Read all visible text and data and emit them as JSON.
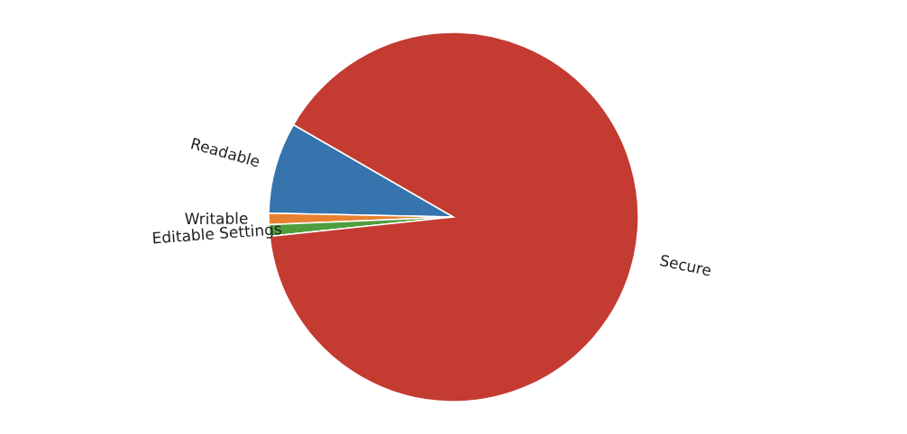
{
  "chart_data": {
    "type": "pie",
    "categories": [
      "Readable",
      "Writable",
      "Editable Settings",
      "Secure"
    ],
    "values": [
      8,
      1,
      1,
      90
    ],
    "colors": [
      "#3674ad",
      "#e8812f",
      "#4f9e3d",
      "#c43b31"
    ]
  }
}
